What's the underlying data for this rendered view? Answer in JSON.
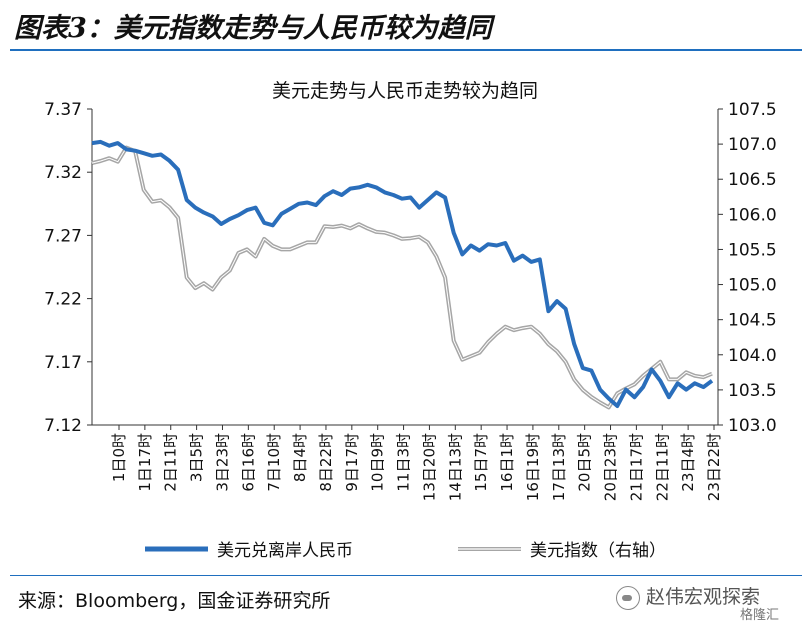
{
  "figure_title": "图表3：美元指数走势与人民币较为趋同",
  "source_note": "来源：Bloomberg，国金证券研究所",
  "watermark": "赵伟宏观探索",
  "watermark2": "格隆汇",
  "colors": {
    "cnh": "#2a6ebb",
    "dxy": "#a6a6a6",
    "rule": "#1f6fbf"
  },
  "chart_data": {
    "type": "line",
    "title": "美元走势与人民币走势较为趋同",
    "x_tick_labels": [
      "1日0时",
      "1日17时",
      "2日11时",
      "3日5时",
      "3日23时",
      "6日16时",
      "7日10时",
      "8日4时",
      "8日22时",
      "9日17时",
      "10日9时",
      "11日3时",
      "13日20时",
      "14日13时",
      "15日7时",
      "16日1时",
      "16日19时",
      "17日13时",
      "20日5时",
      "20日23时",
      "21日17时",
      "22日11时",
      "23日4时",
      "23日22时"
    ],
    "left_axis": {
      "ylim": [
        7.12,
        7.37
      ],
      "ticks": [
        "7.12",
        "7.17",
        "7.22",
        "7.27",
        "7.32",
        "7.37"
      ]
    },
    "right_axis": {
      "ylim": [
        103.0,
        107.5
      ],
      "ticks": [
        "103.0",
        "103.5",
        "104.0",
        "104.5",
        "105.0",
        "105.5",
        "106.0",
        "106.5",
        "107.0",
        "107.5"
      ]
    },
    "series": [
      {
        "name": "美元兑离岸人民币",
        "axis": "left",
        "values": [
          7.343,
          7.344,
          7.341,
          7.343,
          7.338,
          7.337,
          7.335,
          7.333,
          7.334,
          7.329,
          7.322,
          7.298,
          7.292,
          7.288,
          7.285,
          7.279,
          7.283,
          7.286,
          7.29,
          7.292,
          7.28,
          7.278,
          7.287,
          7.291,
          7.295,
          7.296,
          7.294,
          7.301,
          7.305,
          7.302,
          7.307,
          7.308,
          7.31,
          7.308,
          7.304,
          7.302,
          7.299,
          7.3,
          7.292,
          7.298,
          7.304,
          7.3,
          7.272,
          7.255,
          7.262,
          7.258,
          7.263,
          7.262,
          7.264,
          7.25,
          7.254,
          7.249,
          7.251,
          7.21,
          7.218,
          7.212,
          7.184,
          7.165,
          7.163,
          7.148,
          7.141,
          7.135,
          7.148,
          7.142,
          7.15,
          7.164,
          7.155,
          7.142,
          7.153,
          7.148,
          7.153,
          7.15,
          7.155
        ]
      },
      {
        "name": "美元指数（右轴）",
        "axis": "right",
        "values": [
          106.73,
          106.76,
          106.8,
          106.75,
          106.95,
          106.9,
          106.35,
          106.18,
          106.2,
          106.1,
          105.95,
          105.1,
          104.95,
          105.02,
          104.93,
          105.1,
          105.2,
          105.45,
          105.5,
          105.4,
          105.65,
          105.55,
          105.5,
          105.5,
          105.55,
          105.6,
          105.6,
          105.83,
          105.82,
          105.84,
          105.8,
          105.86,
          105.8,
          105.75,
          105.74,
          105.7,
          105.65,
          105.66,
          105.68,
          105.6,
          105.4,
          105.1,
          104.2,
          103.93,
          103.98,
          104.03,
          104.18,
          104.3,
          104.4,
          104.35,
          104.38,
          104.4,
          104.3,
          104.15,
          104.05,
          103.9,
          103.65,
          103.5,
          103.4,
          103.32,
          103.25,
          103.45,
          103.52,
          103.58,
          103.7,
          103.8,
          103.9,
          103.65,
          103.65,
          103.75,
          103.7,
          103.68,
          103.73
        ]
      }
    ],
    "legend_position": "bottom",
    "grid": false
  }
}
